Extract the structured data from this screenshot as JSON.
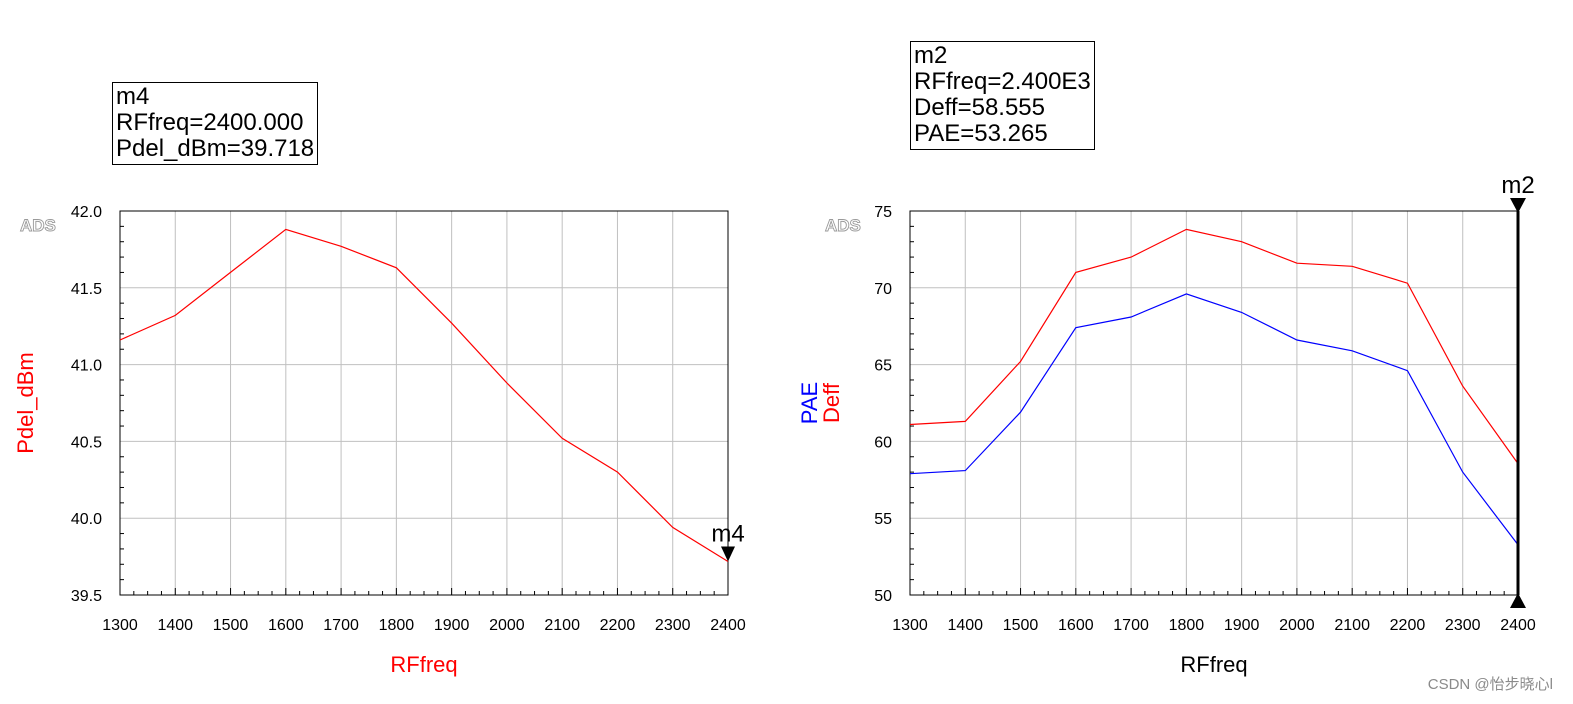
{
  "watermark": "CSDN @怡步晓心l",
  "marker_boxes": {
    "left": {
      "line1": "m4",
      "line2": "RFfreq=2400.000",
      "line3": "Pdel_dBm=39.718"
    },
    "right": {
      "line1": "m2",
      "line2": "RFfreq=2.400E3",
      "line3": "Deff=58.555",
      "line4": "PAE=53.265"
    }
  },
  "chart_data": [
    {
      "type": "line",
      "logo": "ADS",
      "xlabel": "RFfreq",
      "ylabel": "Pdel_dBm",
      "xlim": [
        1300,
        2400
      ],
      "ylim": [
        39.5,
        42.0
      ],
      "x_ticks": [
        "1300",
        "1400",
        "1500",
        "1600",
        "1700",
        "1800",
        "1900",
        "2000",
        "2100",
        "2200",
        "2300",
        "2400"
      ],
      "y_ticks": [
        "39.5",
        "40.0",
        "40.5",
        "41.0",
        "41.5",
        "42.0"
      ],
      "grid": true,
      "marker": {
        "label": "m4",
        "x": 2400,
        "y": 39.718
      },
      "series": [
        {
          "name": "Pdel_dBm",
          "color": "#ff0000",
          "x": [
            1300,
            1400,
            1500,
            1600,
            1700,
            1800,
            1900,
            2000,
            2100,
            2200,
            2300,
            2400
          ],
          "values": [
            41.16,
            41.32,
            41.6,
            41.88,
            41.77,
            41.63,
            41.27,
            40.88,
            40.52,
            40.3,
            39.94,
            39.718
          ]
        }
      ]
    },
    {
      "type": "line",
      "logo": "ADS",
      "xlabel": "RFfreq",
      "ylabel_lines": [
        {
          "text": "PAE",
          "color": "#0000ff"
        },
        {
          "text": "Deff",
          "color": "#ff0000"
        }
      ],
      "xlim": [
        1300,
        2400
      ],
      "ylim": [
        50,
        75
      ],
      "x_ticks": [
        "1300",
        "1400",
        "1500",
        "1600",
        "1700",
        "1800",
        "1900",
        "2000",
        "2100",
        "2200",
        "2300",
        "2400"
      ],
      "y_ticks": [
        "50",
        "55",
        "60",
        "65",
        "70",
        "75"
      ],
      "grid": true,
      "marker": {
        "label": "m2",
        "x": 2400
      },
      "series": [
        {
          "name": "Deff",
          "color": "#ff0000",
          "x": [
            1300,
            1400,
            1500,
            1600,
            1700,
            1800,
            1900,
            2000,
            2100,
            2200,
            2300,
            2400
          ],
          "values": [
            61.1,
            61.3,
            65.2,
            71.0,
            72.0,
            73.8,
            73.0,
            71.6,
            71.4,
            70.3,
            63.6,
            58.555
          ]
        },
        {
          "name": "PAE",
          "color": "#0000ff",
          "x": [
            1300,
            1400,
            1500,
            1600,
            1700,
            1800,
            1900,
            2000,
            2100,
            2200,
            2300,
            2400
          ],
          "values": [
            57.9,
            58.1,
            61.9,
            67.4,
            68.1,
            69.6,
            68.4,
            66.6,
            65.9,
            64.6,
            58.0,
            53.265
          ]
        }
      ]
    }
  ]
}
